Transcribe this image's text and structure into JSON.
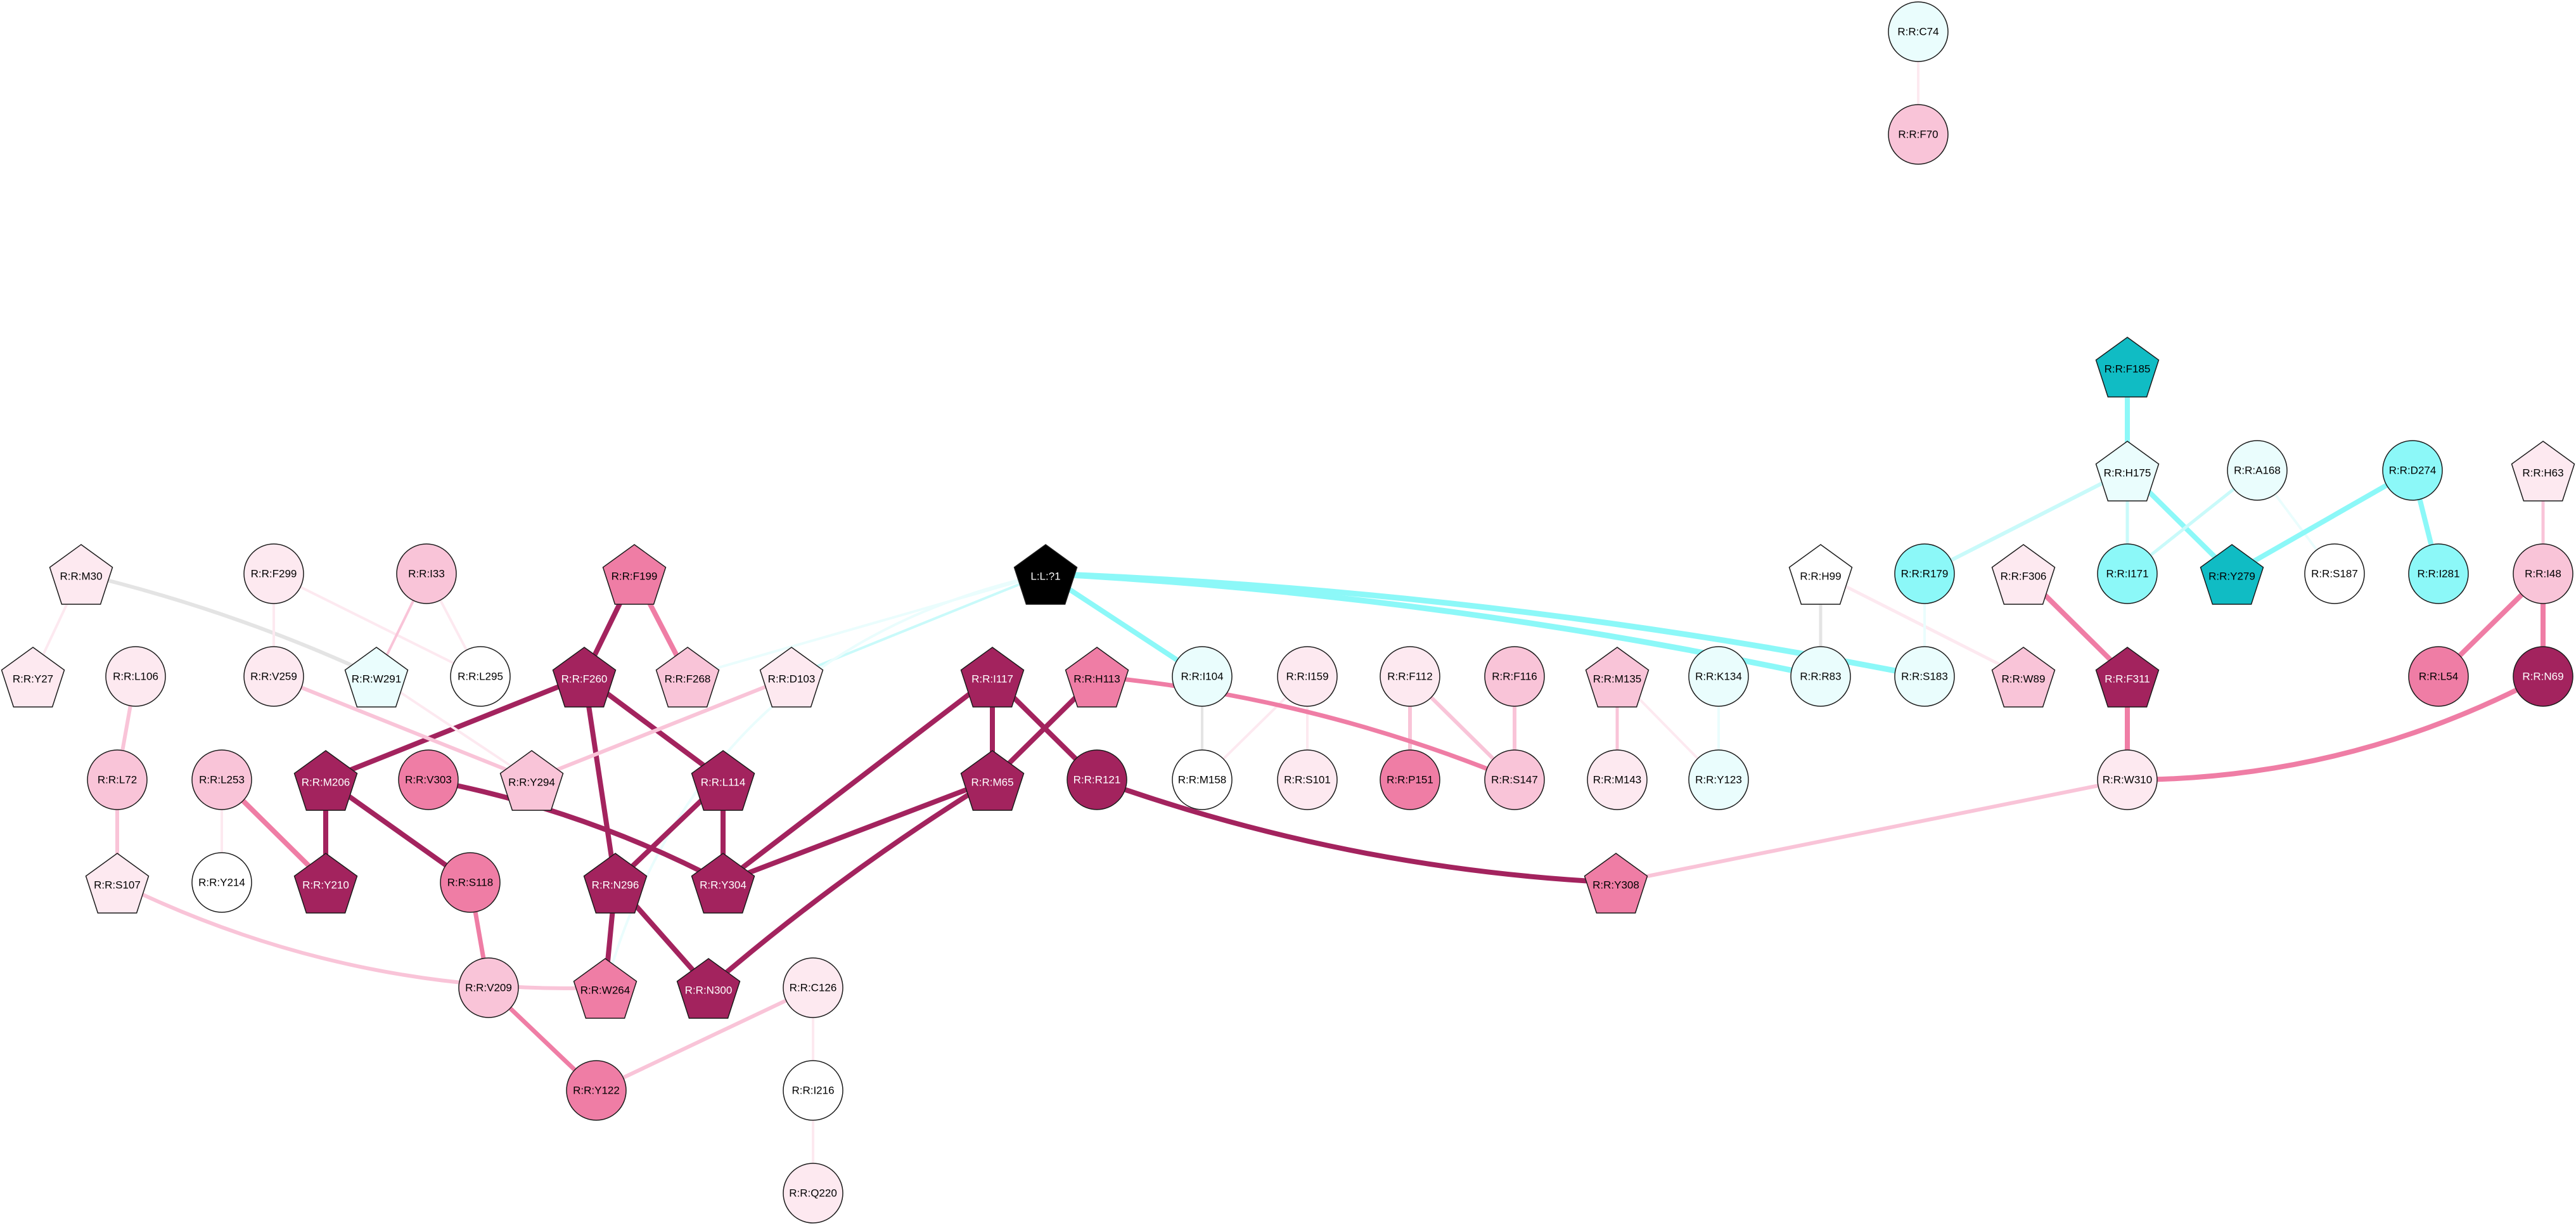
{
  "colors": {
    "dark": "#a3235e",
    "mid": "#ef7da5",
    "light": "#f9c4d8",
    "pale": "#fde9f0",
    "white": "#ffffff",
    "ice": "#eafdfd",
    "cyanlight": "#c9fafa",
    "cyan": "#8cf8f8",
    "teal": "#10bcc4",
    "ligand": "#000000",
    "gray": "#e4e4e4"
  },
  "nodes": [
    {
      "id": "R:R:C74",
      "shape": "circle",
      "fill": "ice"
    },
    {
      "id": "R:R:F70",
      "shape": "circle",
      "fill": "light"
    },
    {
      "id": "R:R:F185",
      "shape": "pentagon",
      "fill": "teal"
    },
    {
      "id": "R:R:H175",
      "shape": "pentagon",
      "fill": "ice"
    },
    {
      "id": "R:R:A168",
      "shape": "circle",
      "fill": "ice"
    },
    {
      "id": "R:R:D274",
      "shape": "circle",
      "fill": "cyan"
    },
    {
      "id": "R:R:H63",
      "shape": "pentagon",
      "fill": "pale"
    },
    {
      "id": "R:R:M30",
      "shape": "pentagon",
      "fill": "pale"
    },
    {
      "id": "R:R:F299",
      "shape": "circle",
      "fill": "pale"
    },
    {
      "id": "R:R:I33",
      "shape": "circle",
      "fill": "light"
    },
    {
      "id": "R:R:F199",
      "shape": "pentagon",
      "fill": "mid"
    },
    {
      "id": "L:L:?1",
      "shape": "pentagon",
      "fill": "ligand"
    },
    {
      "id": "R:R:H99",
      "shape": "pentagon",
      "fill": "white"
    },
    {
      "id": "R:R:R179",
      "shape": "circle",
      "fill": "cyan"
    },
    {
      "id": "R:R:F306",
      "shape": "pentagon",
      "fill": "pale"
    },
    {
      "id": "R:R:I171",
      "shape": "circle",
      "fill": "cyan"
    },
    {
      "id": "R:R:Y279",
      "shape": "pentagon",
      "fill": "teal"
    },
    {
      "id": "R:R:S187",
      "shape": "circle",
      "fill": "white"
    },
    {
      "id": "R:R:I281",
      "shape": "circle",
      "fill": "cyan"
    },
    {
      "id": "R:R:I48",
      "shape": "circle",
      "fill": "light"
    },
    {
      "id": "R:R:Y27",
      "shape": "pentagon",
      "fill": "pale"
    },
    {
      "id": "R:R:L106",
      "shape": "circle",
      "fill": "pale"
    },
    {
      "id": "R:R:V259",
      "shape": "circle",
      "fill": "pale"
    },
    {
      "id": "R:R:W291",
      "shape": "pentagon",
      "fill": "ice"
    },
    {
      "id": "R:R:L295",
      "shape": "circle",
      "fill": "white"
    },
    {
      "id": "R:R:F260",
      "shape": "pentagon",
      "fill": "dark"
    },
    {
      "id": "R:R:F268",
      "shape": "pentagon",
      "fill": "light"
    },
    {
      "id": "R:R:D103",
      "shape": "pentagon",
      "fill": "pale"
    },
    {
      "id": "R:R:I117",
      "shape": "pentagon",
      "fill": "dark"
    },
    {
      "id": "R:R:H113",
      "shape": "pentagon",
      "fill": "mid"
    },
    {
      "id": "R:R:I104",
      "shape": "circle",
      "fill": "ice"
    },
    {
      "id": "R:R:I159",
      "shape": "circle",
      "fill": "pale"
    },
    {
      "id": "R:R:F112",
      "shape": "circle",
      "fill": "pale"
    },
    {
      "id": "R:R:F116",
      "shape": "circle",
      "fill": "light"
    },
    {
      "id": "R:R:M135",
      "shape": "pentagon",
      "fill": "light"
    },
    {
      "id": "R:R:K134",
      "shape": "circle",
      "fill": "ice"
    },
    {
      "id": "R:R:R83",
      "shape": "circle",
      "fill": "ice"
    },
    {
      "id": "R:R:S183",
      "shape": "circle",
      "fill": "ice"
    },
    {
      "id": "R:R:W89",
      "shape": "pentagon",
      "fill": "light"
    },
    {
      "id": "R:R:F311",
      "shape": "pentagon",
      "fill": "dark"
    },
    {
      "id": "R:R:L54",
      "shape": "circle",
      "fill": "mid"
    },
    {
      "id": "R:R:N69",
      "shape": "circle",
      "fill": "dark"
    },
    {
      "id": "R:R:L72",
      "shape": "circle",
      "fill": "light"
    },
    {
      "id": "R:R:L253",
      "shape": "circle",
      "fill": "light"
    },
    {
      "id": "R:R:M206",
      "shape": "pentagon",
      "fill": "dark"
    },
    {
      "id": "R:R:V303",
      "shape": "circle",
      "fill": "mid"
    },
    {
      "id": "R:R:Y294",
      "shape": "pentagon",
      "fill": "light"
    },
    {
      "id": "R:R:L114",
      "shape": "pentagon",
      "fill": "dark"
    },
    {
      "id": "R:R:M65",
      "shape": "pentagon",
      "fill": "dark"
    },
    {
      "id": "R:R:R121",
      "shape": "circle",
      "fill": "dark"
    },
    {
      "id": "R:R:M158",
      "shape": "circle",
      "fill": "white"
    },
    {
      "id": "R:R:S101",
      "shape": "circle",
      "fill": "pale"
    },
    {
      "id": "R:R:P151",
      "shape": "circle",
      "fill": "mid"
    },
    {
      "id": "R:R:S147",
      "shape": "circle",
      "fill": "light"
    },
    {
      "id": "R:R:M143",
      "shape": "circle",
      "fill": "pale"
    },
    {
      "id": "R:R:Y123",
      "shape": "circle",
      "fill": "ice"
    },
    {
      "id": "R:R:W310",
      "shape": "circle",
      "fill": "pale"
    },
    {
      "id": "R:R:S107",
      "shape": "pentagon",
      "fill": "pale"
    },
    {
      "id": "R:R:Y214",
      "shape": "circle",
      "fill": "white"
    },
    {
      "id": "R:R:Y210",
      "shape": "pentagon",
      "fill": "dark"
    },
    {
      "id": "R:R:S118",
      "shape": "circle",
      "fill": "mid"
    },
    {
      "id": "R:R:N296",
      "shape": "pentagon",
      "fill": "dark"
    },
    {
      "id": "R:R:Y304",
      "shape": "pentagon",
      "fill": "dark"
    },
    {
      "id": "R:R:Y308",
      "shape": "pentagon",
      "fill": "mid"
    },
    {
      "id": "R:R:V209",
      "shape": "circle",
      "fill": "light"
    },
    {
      "id": "R:R:W264",
      "shape": "pentagon",
      "fill": "mid"
    },
    {
      "id": "R:R:N300",
      "shape": "pentagon",
      "fill": "dark"
    },
    {
      "id": "R:R:C126",
      "shape": "circle",
      "fill": "pale"
    },
    {
      "id": "R:R:Y122",
      "shape": "circle",
      "fill": "mid"
    },
    {
      "id": "R:R:I216",
      "shape": "circle",
      "fill": "white"
    },
    {
      "id": "R:R:Q220",
      "shape": "circle",
      "fill": "pale"
    }
  ],
  "edges": [
    {
      "a": "R:R:C74",
      "b": "R:R:F70",
      "color": "pale",
      "w": 4
    },
    {
      "a": "R:R:F185",
      "b": "R:R:H175",
      "color": "cyan",
      "w": 8
    },
    {
      "a": "R:R:H175",
      "b": "R:R:R179",
      "color": "cyanlight",
      "w": 6
    },
    {
      "a": "R:R:H175",
      "b": "R:R:I171",
      "color": "cyanlight",
      "w": 5
    },
    {
      "a": "R:R:H175",
      "b": "R:R:Y279",
      "color": "cyan",
      "w": 8
    },
    {
      "a": "R:R:A168",
      "b": "R:R:I171",
      "color": "cyanlight",
      "w": 5
    },
    {
      "a": "R:R:A168",
      "b": "R:R:S187",
      "color": "ice",
      "w": 4
    },
    {
      "a": "R:R:D274",
      "b": "R:R:Y279",
      "color": "cyan",
      "w": 8
    },
    {
      "a": "R:R:D274",
      "b": "R:R:I281",
      "color": "cyan",
      "w": 8
    },
    {
      "a": "R:R:H63",
      "b": "R:R:I48",
      "color": "light",
      "w": 5
    },
    {
      "a": "R:R:I48",
      "b": "R:R:L54",
      "color": "mid",
      "w": 8
    },
    {
      "a": "R:R:I48",
      "b": "R:R:N69",
      "color": "mid",
      "w": 8
    },
    {
      "a": "R:R:N69",
      "b": "R:R:W310",
      "color": "mid",
      "w": 8,
      "bend": -25
    },
    {
      "a": "R:R:F311",
      "b": "R:R:W310",
      "color": "mid",
      "w": 8
    },
    {
      "a": "R:R:F306",
      "b": "R:R:F311",
      "color": "mid",
      "w": 8
    },
    {
      "a": "R:R:W310",
      "b": "R:R:Y308",
      "color": "light",
      "w": 6
    },
    {
      "a": "R:R:H99",
      "b": "R:R:R83",
      "color": "gray",
      "w": 5
    },
    {
      "a": "R:R:H99",
      "b": "R:R:W89",
      "color": "pale",
      "w": 5
    },
    {
      "a": "R:R:R179",
      "b": "R:R:S183",
      "color": "ice",
      "w": 4
    },
    {
      "a": "L:L:?1",
      "b": "R:R:R83",
      "color": "cyan",
      "w": 9,
      "bend": -8
    },
    {
      "a": "L:L:?1",
      "b": "R:R:S183",
      "color": "cyan",
      "w": 9,
      "bend": -8
    },
    {
      "a": "L:L:?1",
      "b": "R:R:I104",
      "color": "cyan",
      "w": 8
    },
    {
      "a": "L:L:?1",
      "b": "R:R:F268",
      "color": "ice",
      "w": 4
    },
    {
      "a": "L:L:?1",
      "b": "R:R:D103",
      "color": "cyanlight",
      "w": 4
    },
    {
      "a": "L:L:?1",
      "b": "R:R:W264",
      "color": "ice",
      "w": 4,
      "bend": 60
    },
    {
      "a": "R:R:I104",
      "b": "R:R:M158",
      "color": "gray",
      "w": 4
    },
    {
      "a": "R:R:I159",
      "b": "R:R:M158",
      "color": "pale",
      "w": 4
    },
    {
      "a": "R:R:I159",
      "b": "R:R:S101",
      "color": "pale",
      "w": 4
    },
    {
      "a": "R:R:F112",
      "b": "R:R:P151",
      "color": "light",
      "w": 6
    },
    {
      "a": "R:R:F112",
      "b": "R:R:S147",
      "color": "light",
      "w": 6
    },
    {
      "a": "R:R:F116",
      "b": "R:R:S147",
      "color": "light",
      "w": 6
    },
    {
      "a": "R:R:H113",
      "b": "R:R:S147",
      "color": "mid",
      "w": 7,
      "bend": -15
    },
    {
      "a": "R:R:M135",
      "b": "R:R:M143",
      "color": "light",
      "w": 5
    },
    {
      "a": "R:R:M135",
      "b": "R:R:Y123",
      "color": "pale",
      "w": 4
    },
    {
      "a": "R:R:K134",
      "b": "R:R:Y123",
      "color": "ice",
      "w": 4
    },
    {
      "a": "R:R:H113",
      "b": "R:R:M65",
      "color": "dark",
      "w": 8
    },
    {
      "a": "R:R:I117",
      "b": "R:R:M65",
      "color": "dark",
      "w": 8
    },
    {
      "a": "R:R:I117",
      "b": "R:R:R121",
      "color": "dark",
      "w": 8
    },
    {
      "a": "R:R:I117",
      "b": "R:R:Y304",
      "color": "dark",
      "w": 8
    },
    {
      "a": "R:R:M65",
      "b": "R:R:Y304",
      "color": "dark",
      "w": 8
    },
    {
      "a": "R:R:M65",
      "b": "R:R:N300",
      "color": "dark",
      "w": 8,
      "bend": 8
    },
    {
      "a": "R:R:R121",
      "b": "R:R:Y308",
      "color": "dark",
      "w": 8,
      "bend": 15
    },
    {
      "a": "R:R:F199",
      "b": "R:R:F260",
      "color": "dark",
      "w": 8
    },
    {
      "a": "R:R:F199",
      "b": "R:R:F268",
      "color": "mid",
      "w": 8
    },
    {
      "a": "R:R:F260",
      "b": "R:R:M206",
      "color": "dark",
      "w": 8
    },
    {
      "a": "R:R:F260",
      "b": "R:R:L114",
      "color": "dark",
      "w": 8
    },
    {
      "a": "R:R:F260",
      "b": "R:R:N296",
      "color": "dark",
      "w": 8
    },
    {
      "a": "R:R:L114",
      "b": "R:R:Y304",
      "color": "dark",
      "w": 8
    },
    {
      "a": "R:R:L114",
      "b": "R:R:N296",
      "color": "dark",
      "w": 8
    },
    {
      "a": "R:R:V303",
      "b": "R:R:Y304",
      "color": "dark",
      "w": 8,
      "bend": -15
    },
    {
      "a": "R:R:N296",
      "b": "R:R:W264",
      "color": "dark",
      "w": 8
    },
    {
      "a": "R:R:N296",
      "b": "R:R:N300",
      "color": "dark",
      "w": 8
    },
    {
      "a": "R:R:M206",
      "b": "R:R:Y210",
      "color": "dark",
      "w": 8
    },
    {
      "a": "R:R:M206",
      "b": "R:R:S118",
      "color": "dark",
      "w": 8
    },
    {
      "a": "R:R:L253",
      "b": "R:R:Y210",
      "color": "mid",
      "w": 8
    },
    {
      "a": "R:R:L253",
      "b": "R:R:Y214",
      "color": "pale",
      "w": 4
    },
    {
      "a": "R:R:S118",
      "b": "R:R:V209",
      "color": "mid",
      "w": 7
    },
    {
      "a": "R:R:V209",
      "b": "R:R:Y122",
      "color": "mid",
      "w": 7
    },
    {
      "a": "R:R:C126",
      "b": "R:R:Y122",
      "color": "light",
      "w": 6
    },
    {
      "a": "R:R:C126",
      "b": "R:R:I216",
      "color": "pale",
      "w": 4
    },
    {
      "a": "R:R:I216",
      "b": "R:R:Q220",
      "color": "pale",
      "w": 4
    },
    {
      "a": "R:R:M30",
      "b": "R:R:Y27",
      "color": "pale",
      "w": 4
    },
    {
      "a": "R:R:M30",
      "b": "R:R:W291",
      "color": "gray",
      "w": 6,
      "bend": -10
    },
    {
      "a": "R:R:F299",
      "b": "R:R:V259",
      "color": "pale",
      "w": 4
    },
    {
      "a": "R:R:F299",
      "b": "R:R:L295",
      "color": "pale",
      "w": 4
    },
    {
      "a": "R:R:I33",
      "b": "R:R:W291",
      "color": "light",
      "w": 4
    },
    {
      "a": "R:R:I33",
      "b": "R:R:L295",
      "color": "pale",
      "w": 4
    },
    {
      "a": "R:R:V259",
      "b": "R:R:Y294",
      "color": "light",
      "w": 6
    },
    {
      "a": "R:R:W291",
      "b": "R:R:Y294",
      "color": "pale",
      "w": 4
    },
    {
      "a": "R:R:D103",
      "b": "R:R:Y294",
      "color": "light",
      "w": 6
    },
    {
      "a": "R:R:L106",
      "b": "R:R:L72",
      "color": "light",
      "w": 6
    },
    {
      "a": "R:R:L72",
      "b": "R:R:S107",
      "color": "light",
      "w": 6
    },
    {
      "a": "R:R:S107",
      "b": "R:R:W264",
      "color": "light",
      "w": 6,
      "bend": 25
    }
  ]
}
